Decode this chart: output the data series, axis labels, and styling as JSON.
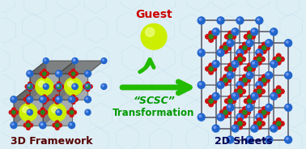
{
  "bg_color": "#ddeef5",
  "title_3d": "3D Framework",
  "title_2d": "2D Sheets",
  "guest_label": "Guest",
  "scsc_line1": "“SCSC”",
  "scsc_line2": "Transformation",
  "frame_color": "#404040",
  "node_color": "#2266cc",
  "sphere_color": "#ccee00",
  "sphere_highlight": "#eeff88",
  "red_ball_color": "#cc1111",
  "green_center_color": "#228822",
  "arrow_color": "#22bb00",
  "label_color_3d": "#550000",
  "label_color_2d": "#000055",
  "scsc_color": "#009900",
  "guest_color": "#cc0000",
  "face_dark": "#3a3a3a",
  "face_mid": "#555555",
  "face_light": "#777777",
  "sheet_face_color": "#e8eff5",
  "sheet_edge_color": "#555566"
}
